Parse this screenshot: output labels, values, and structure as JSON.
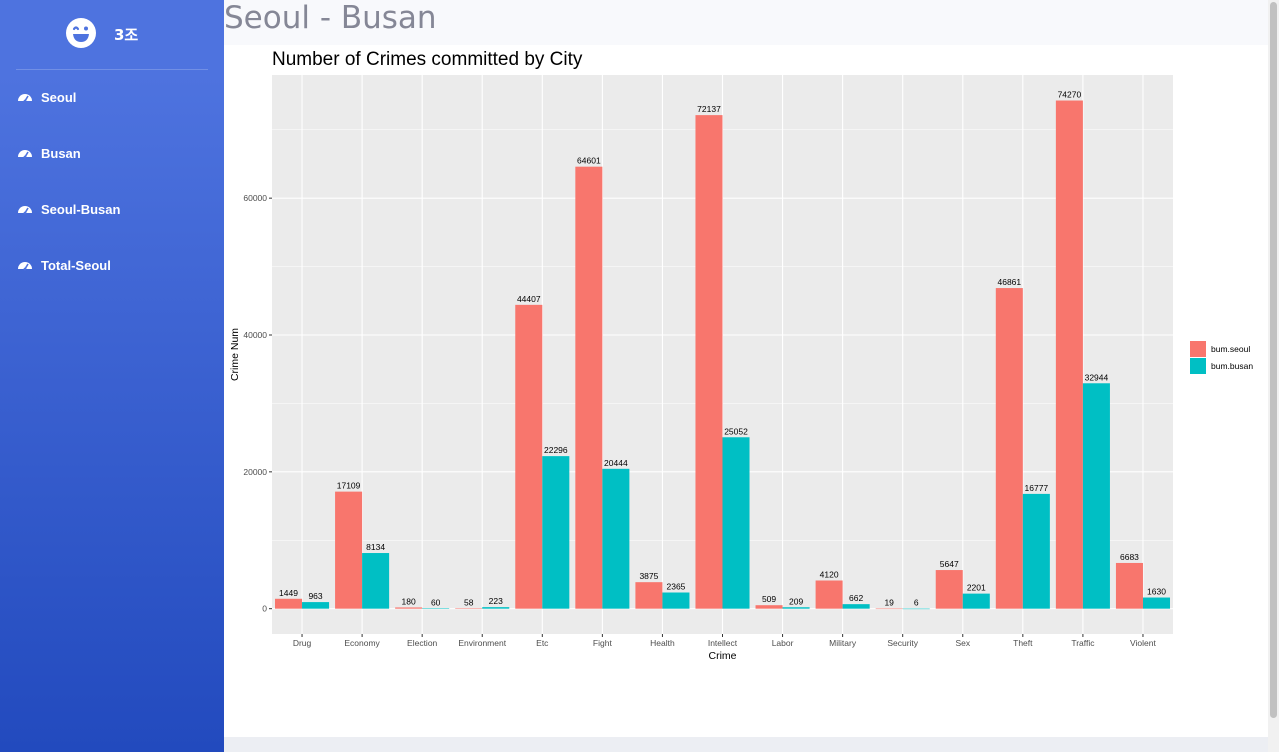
{
  "brand": {
    "text": "3조"
  },
  "sidebar": {
    "items": [
      {
        "label": "Seoul",
        "icon": "tachometer-icon"
      },
      {
        "label": "Busan",
        "icon": "tachometer-icon"
      },
      {
        "label": "Seoul-Busan",
        "icon": "tachometer-icon"
      },
      {
        "label": "Total-Seoul",
        "icon": "tachometer-icon"
      }
    ]
  },
  "page": {
    "title": "Seoul - Busan"
  },
  "colors": {
    "seoul": "#F8766D",
    "busan": "#00BFC4",
    "panel": "#EBEBEB",
    "sidebar_top": "#4e73df",
    "sidebar_bottom": "#224abe"
  },
  "chart_data": {
    "type": "bar",
    "title": "Number of Crimes committed by City",
    "xlabel": "Crime",
    "ylabel": "Crime Num",
    "categories": [
      "Drug",
      "Economy",
      "Election",
      "Environment",
      "Etc",
      "Fight",
      "Health",
      "Intellect",
      "Labor",
      "Military",
      "Security",
      "Sex",
      "Theft",
      "Traffic",
      "Violent"
    ],
    "series": [
      {
        "name": "bum.seoul",
        "color": "#F8766D",
        "values": [
          1449,
          17109,
          180,
          58,
          44407,
          64601,
          3875,
          72137,
          509,
          4120,
          19,
          5647,
          46861,
          74270,
          6683
        ]
      },
      {
        "name": "bum.busan",
        "color": "#00BFC4",
        "values": [
          963,
          8134,
          60,
          223,
          22296,
          20444,
          2365,
          25052,
          209,
          662,
          6,
          2201,
          16777,
          32944,
          1630
        ]
      }
    ],
    "yticks": [
      0,
      20000,
      40000,
      60000
    ],
    "ylim": [
      -3700,
      78000
    ],
    "grid": true,
    "legend": "right"
  }
}
